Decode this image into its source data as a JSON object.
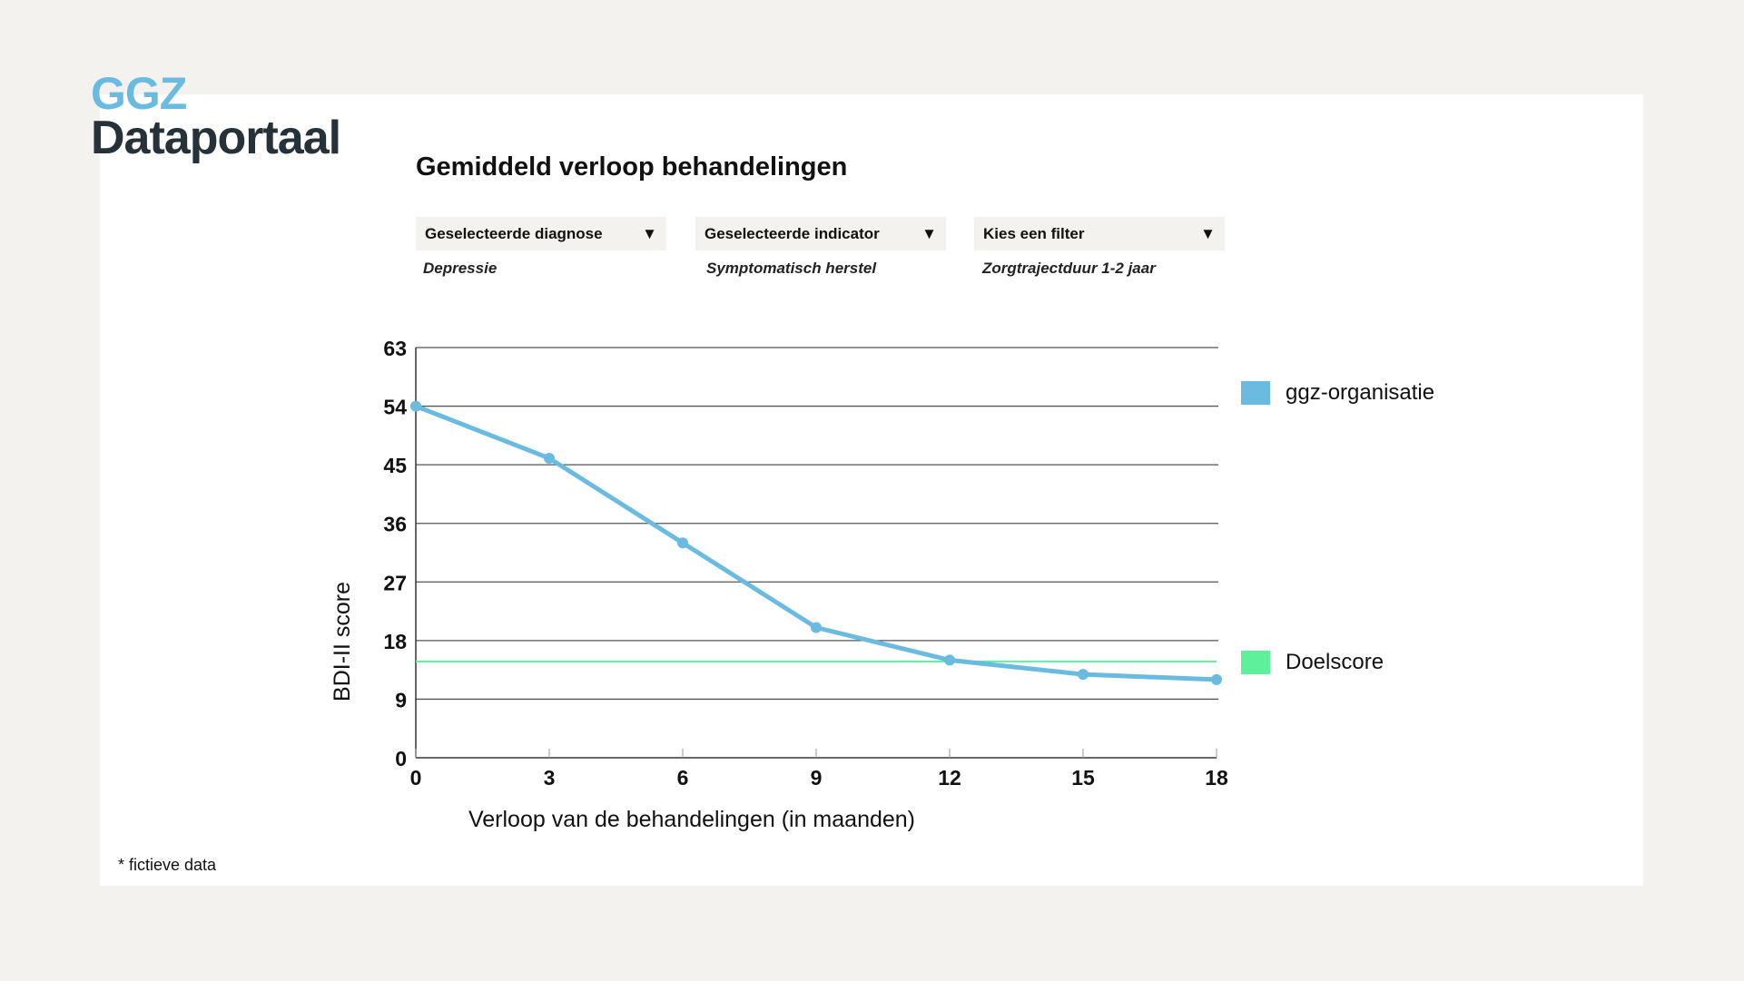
{
  "logo": {
    "line1": "GGZ",
    "line2": "Dataportaal"
  },
  "page_title": "Gemiddeld verloop behandelingen",
  "filters": [
    {
      "label": "Geselecteerde diagnose",
      "value": "Depressie"
    },
    {
      "label": "Geselecteerde indicator",
      "value": "Symptomatisch herstel"
    },
    {
      "label": "Kies een filter",
      "value": "Zorgtrajectduur 1-2 jaar"
    }
  ],
  "dropdown_icon": "triangle-down",
  "footnote": "* fictieve data",
  "chart_data": {
    "type": "line",
    "xlabel": "Verloop van de behandelingen (in maanden)",
    "ylabel": "BDI-II score",
    "x": [
      0,
      3,
      6,
      9,
      12,
      15,
      18
    ],
    "xticks": [
      "0",
      "3",
      "6",
      "9",
      "12",
      "15",
      "18"
    ],
    "yticks": [
      "0",
      "9",
      "18",
      "27",
      "36",
      "45",
      "54",
      "63"
    ],
    "xlim": [
      0,
      18
    ],
    "ylim": [
      0,
      63
    ],
    "grid": "horizontal",
    "legend_position": "right",
    "series": [
      {
        "name": "ggz-organisatie",
        "color": "#6bbbe0",
        "values": [
          54,
          46,
          33,
          20,
          15,
          12.8,
          12
        ]
      },
      {
        "name": "Doelscore",
        "color": "#5ef09a",
        "type": "reference-line",
        "value": 14.8
      }
    ]
  }
}
